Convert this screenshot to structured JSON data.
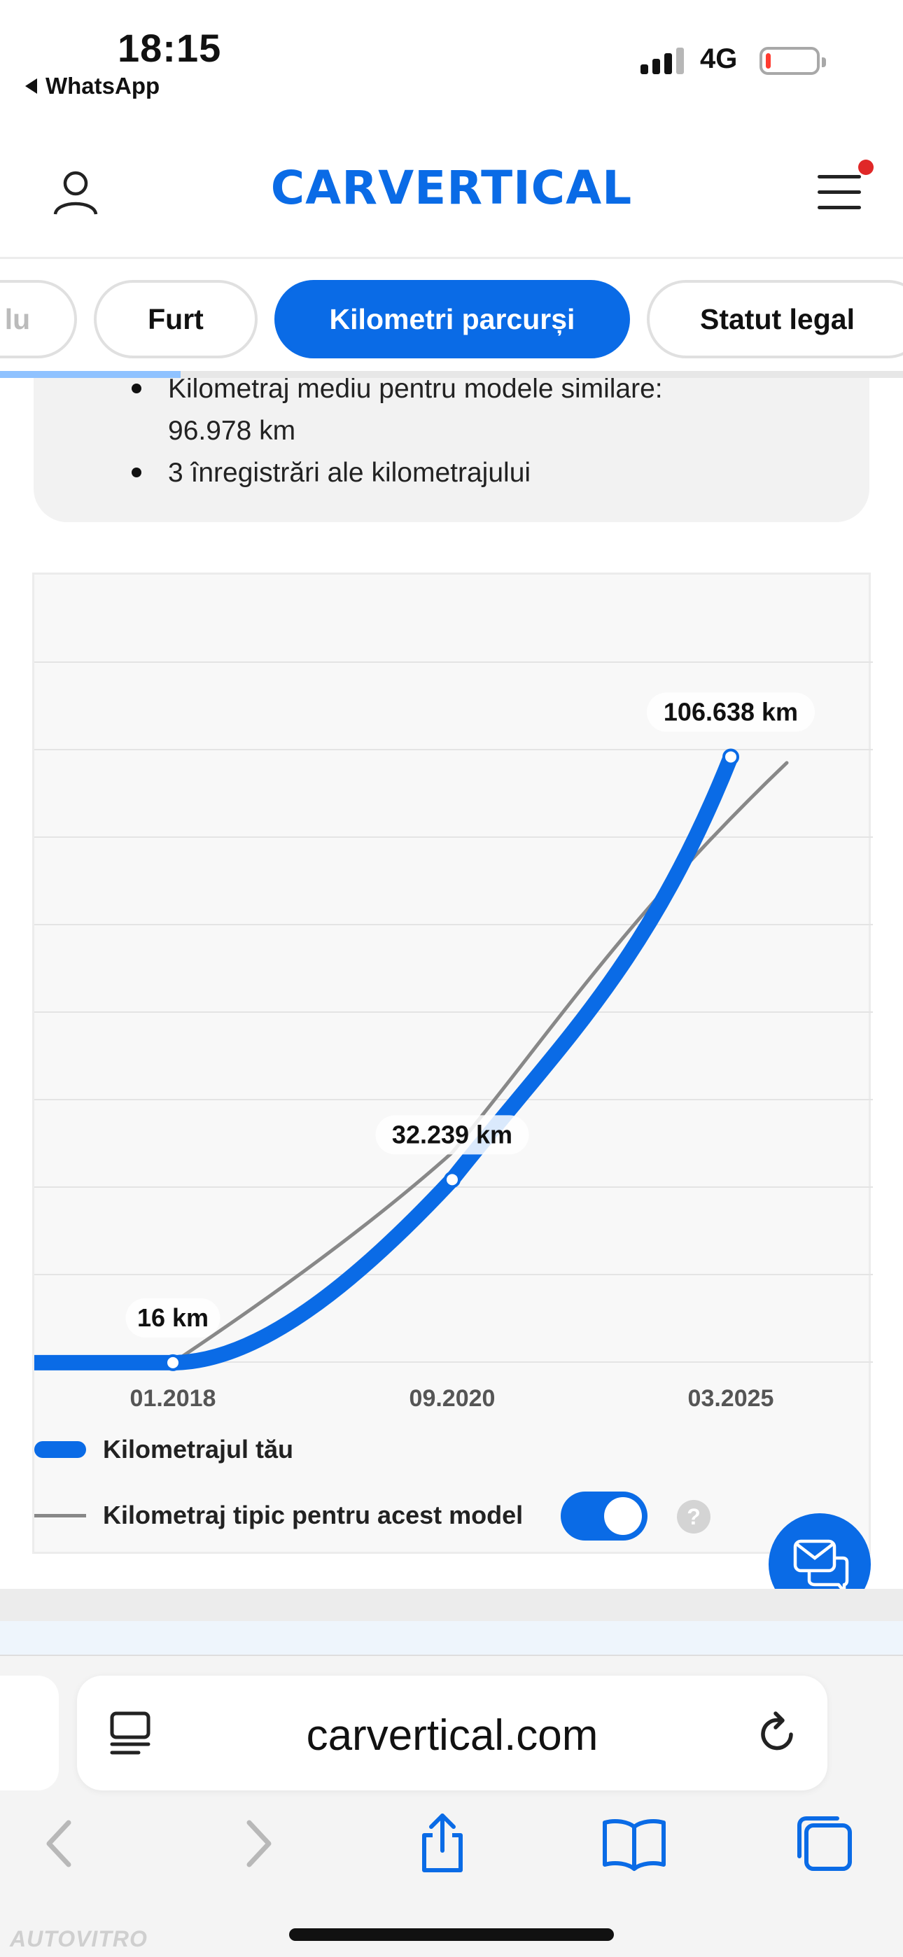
{
  "status_bar": {
    "time": "18:15",
    "back_app": "WhatsApp",
    "network": "4G",
    "battery_level": 0.1
  },
  "header": {
    "logo_text": "CARVERTICAL",
    "user_icon": "user-icon",
    "menu_icon": "hamburger-menu-icon",
    "accent_color": "#0a6be6",
    "notification_color": "#e02828"
  },
  "tabs": [
    {
      "label": "lu",
      "active": false
    },
    {
      "label": "Furt",
      "active": false
    },
    {
      "label": "Kilometri parcurși",
      "active": true
    },
    {
      "label": "Statut legal",
      "active": false
    }
  ],
  "summary": {
    "items": [
      "Kilometraj mediu pentru modele similare:",
      "96.978 km",
      "3 înregistrări ale kilometrajului"
    ]
  },
  "chart_data": {
    "type": "line",
    "x_tick_labels": [
      "01.2018",
      "09.2020",
      "03.2025"
    ],
    "grid": true,
    "series": [
      {
        "name": "Kilometrajul tău",
        "color": "#0a6be6",
        "points": [
          {
            "x": "01.2018",
            "y": 16,
            "label": "16 km"
          },
          {
            "x": "09.2020",
            "y": 32239,
            "label": "32.239 km"
          },
          {
            "x": "03.2025",
            "y": 106638,
            "label": "106.638 km"
          }
        ]
      },
      {
        "name": "Kilometraj tipic pentru acest model",
        "color": "#888888",
        "points": [
          {
            "x": "01.2018",
            "y": 16
          },
          {
            "x": "09.2020",
            "y": 37000
          },
          {
            "x": "03.2025",
            "y": 96978
          }
        ]
      }
    ],
    "legend_placement": "bottom",
    "toggle_on": true
  },
  "safari": {
    "url": "carvertical.com"
  },
  "watermark": "AUTOVITRO"
}
